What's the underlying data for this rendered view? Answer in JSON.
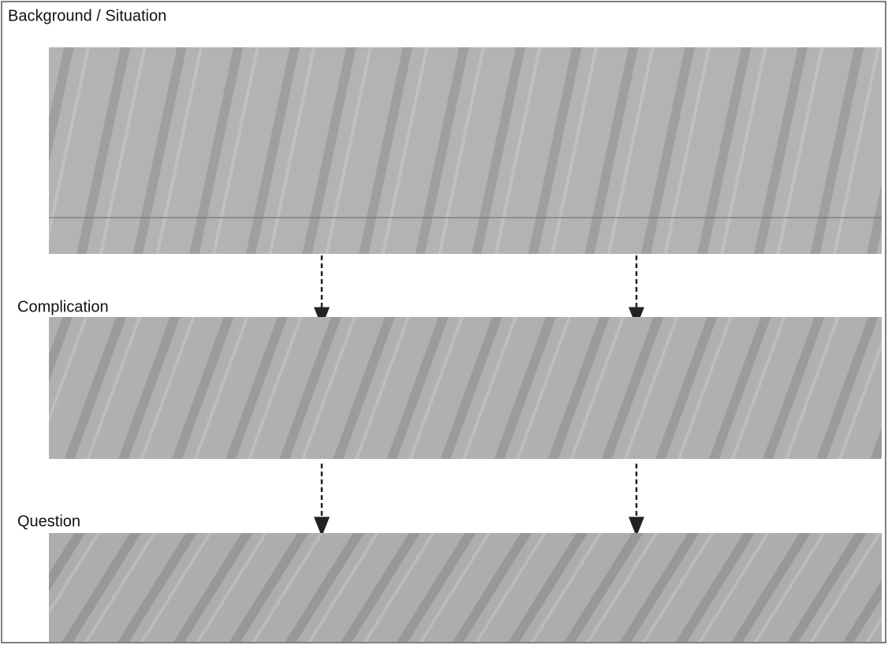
{
  "sections": [
    {
      "label": "Background / Situation"
    },
    {
      "label": "Complication"
    },
    {
      "label": "Question"
    }
  ]
}
